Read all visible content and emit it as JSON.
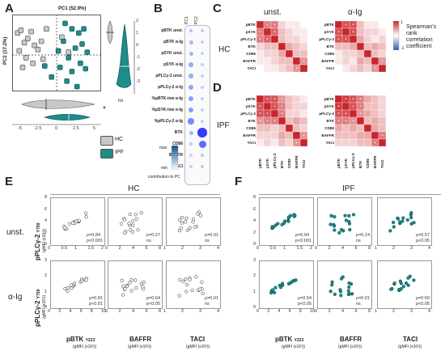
{
  "panel_letters": {
    "a": "A",
    "b": "B",
    "c": "C",
    "d": "D",
    "e": "E",
    "f": "F"
  },
  "panelA": {
    "pc1_label": "PC1 (52.9%)",
    "pc2_label": "PC2 (17.2%)",
    "x_ticks": [
      "-5",
      "-2.5",
      "0",
      "2.5",
      "5"
    ],
    "y_ticks": [
      "2",
      "1",
      "0",
      "-1",
      "-2",
      "-3"
    ],
    "sig_star": "*",
    "ns": "ns",
    "legend": [
      {
        "name": "HC",
        "color": "#c8c8c8"
      },
      {
        "name": "IPF",
        "color": "#1e8c88"
      }
    ],
    "hc_points": [
      [
        -4.6,
        1.6
      ],
      [
        -4.2,
        1.8
      ],
      [
        -3.8,
        0.9
      ],
      [
        -3.4,
        1.2
      ],
      [
        -3.0,
        1.7
      ],
      [
        -2.6,
        0.7
      ],
      [
        -2.2,
        0.4
      ],
      [
        -1.8,
        1.0
      ],
      [
        -4.4,
        0.3
      ],
      [
        -3.6,
        -0.2
      ],
      [
        -2.8,
        -0.6
      ],
      [
        -1.2,
        1.9
      ],
      [
        0.6,
        1.3
      ],
      [
        -4.0,
        -0.9
      ],
      [
        -1.6,
        -0.3
      ],
      [
        1.4,
        0.2
      ]
    ],
    "ipf_points": [
      [
        1.0,
        2.3
      ],
      [
        1.8,
        1.9
      ],
      [
        2.6,
        1.6
      ],
      [
        3.2,
        1.9
      ],
      [
        0.8,
        1.0
      ],
      [
        2.2,
        0.5
      ],
      [
        3.0,
        0.8
      ],
      [
        1.4,
        -0.2
      ],
      [
        2.8,
        -0.6
      ],
      [
        0.4,
        -0.9
      ],
      [
        1.8,
        -1.2
      ],
      [
        3.4,
        -1.0
      ],
      [
        -0.6,
        -1.6
      ],
      [
        1.2,
        -1.9
      ],
      [
        2.4,
        -2.3
      ],
      [
        -1.4,
        -0.8
      ],
      [
        3.6,
        0.2
      ],
      [
        0.2,
        0.3
      ]
    ]
  },
  "panelB": {
    "col_headers": [
      "PC1",
      "PC2"
    ],
    "rows": [
      "pBTK unst.",
      "pBTK α-Ig",
      "pSYK unst.",
      "pSYK α-Ig",
      "pPLCγ-2 unst.",
      "pPLCγ-2 α-Ig",
      "%pBTK-low α-Ig",
      "%pSYK-low α-Ig",
      "%pPLCγ-2 α-Ig",
      "BTK",
      "CD86",
      "BAFFR",
      "TACI"
    ],
    "pc1": [
      0.15,
      0.2,
      0.2,
      0.25,
      0.25,
      0.3,
      0.35,
      0.35,
      0.45,
      0.2,
      0.1,
      0.05,
      0.05
    ],
    "pc2": [
      0.05,
      0.05,
      0.05,
      0.05,
      0.05,
      0.05,
      0.05,
      0.05,
      0.05,
      0.85,
      0.6,
      0.1,
      0.1
    ],
    "scale_max": "max",
    "scale_min": "min",
    "scale_caption": "contribution to PC"
  },
  "panelCD": {
    "col_unst": "unst.",
    "col_aig": "α-Ig",
    "row_hc": "HC",
    "row_ipf": "IPF",
    "labels": [
      "pBTK",
      "pSYK",
      "pPLCγ-2",
      "BTK",
      "CD86",
      "BAFFR",
      "TACI"
    ],
    "colorbar_max": "1",
    "colorbar_min": "-1",
    "colorbar_caption": "Spearman's rank correlation coefficient",
    "hc_unst": [
      [
        1,
        0.6,
        0.6,
        0.2,
        0.1,
        0.1,
        0.0
      ],
      [
        0.6,
        1,
        0.7,
        0.3,
        0.2,
        0.1,
        0.1
      ],
      [
        0.6,
        0.7,
        1,
        0.3,
        0.2,
        0.2,
        0.1
      ],
      [
        0.2,
        0.3,
        0.3,
        1,
        0.4,
        0.3,
        0.2
      ],
      [
        0.1,
        0.2,
        0.2,
        0.4,
        1,
        0.3,
        0.3
      ],
      [
        0.1,
        0.1,
        0.2,
        0.3,
        0.3,
        1,
        0.5
      ],
      [
        0.0,
        0.1,
        0.1,
        0.2,
        0.3,
        0.5,
        1
      ]
    ],
    "hc_aig": [
      [
        1,
        0.8,
        0.8,
        0.3,
        0.1,
        0.1,
        0.0
      ],
      [
        0.8,
        1,
        0.8,
        0.3,
        0.2,
        0.2,
        0.1
      ],
      [
        0.8,
        0.8,
        1,
        0.4,
        0.2,
        0.1,
        0.2
      ],
      [
        0.3,
        0.3,
        0.4,
        1,
        0.3,
        0.4,
        0.3
      ],
      [
        0.1,
        0.2,
        0.2,
        0.3,
        1,
        0.3,
        0.2
      ],
      [
        0.1,
        0.2,
        0.1,
        0.4,
        0.3,
        1,
        0.5
      ],
      [
        0.0,
        0.1,
        0.2,
        0.3,
        0.2,
        0.5,
        1
      ]
    ],
    "ipf_unst": [
      [
        1,
        0.8,
        0.8,
        0.5,
        0.3,
        0.2,
        0.1
      ],
      [
        0.8,
        1,
        0.8,
        0.6,
        0.3,
        0.2,
        0.2
      ],
      [
        0.8,
        0.8,
        1,
        0.6,
        0.2,
        0.2,
        0.1
      ],
      [
        0.5,
        0.6,
        0.6,
        1,
        0.3,
        0.4,
        0.3
      ],
      [
        0.3,
        0.3,
        0.2,
        0.3,
        1,
        0.3,
        0.2
      ],
      [
        0.2,
        0.2,
        0.2,
        0.4,
        0.3,
        1,
        0.5
      ],
      [
        0.1,
        0.2,
        0.1,
        0.3,
        0.2,
        0.5,
        1
      ]
    ],
    "ipf_aig": [
      [
        1,
        0.9,
        0.8,
        0.6,
        0.4,
        0.3,
        0.2
      ],
      [
        0.9,
        1,
        0.8,
        0.6,
        0.3,
        0.3,
        0.2
      ],
      [
        0.8,
        0.8,
        1,
        0.5,
        0.4,
        0.3,
        0.2
      ],
      [
        0.6,
        0.6,
        0.5,
        1,
        0.3,
        0.4,
        0.3
      ],
      [
        0.4,
        0.3,
        0.4,
        0.3,
        1,
        0.4,
        0.3
      ],
      [
        0.3,
        0.3,
        0.3,
        0.4,
        0.4,
        1,
        0.6
      ],
      [
        0.2,
        0.2,
        0.2,
        0.3,
        0.3,
        0.6,
        1
      ]
    ]
  },
  "panelEF": {
    "hc_title": "HC",
    "ipf_title": "IPF",
    "row_unst": "unst.",
    "row_aig": "α-Ig",
    "y_label": "pPLCγ-2",
    "y_label_sub": "Y759",
    "y_units": "(gMFI (x10³))",
    "x_labels": [
      "pBTK",
      "BAFFR",
      "TACI"
    ],
    "x_label_sub": "Y223",
    "x_units": "(gMFI (x10³))",
    "hc_unst_stats": [
      [
        "ρ=0.84",
        "p<0.001"
      ],
      [
        "ρ=0.27",
        "ns"
      ],
      [
        "ρ=0.01",
        "ns"
      ]
    ],
    "hc_aig_stats": [
      [
        "ρ=0.81",
        "p<0.01"
      ],
      [
        "ρ=0.64",
        "p<0.05"
      ],
      [
        "ρ=0.01",
        "ns"
      ]
    ],
    "ipf_unst_stats": [
      [
        "ρ=0.94",
        "p<0.001"
      ],
      [
        "ρ=0.14",
        "ns"
      ],
      [
        "ρ=0.57",
        "p<0.05"
      ]
    ],
    "ipf_aig_stats": [
      [
        "ρ=0.54",
        "p<0.05"
      ],
      [
        "ρ=0.01",
        "ns"
      ],
      [
        "ρ=0.60",
        "p<0.05"
      ]
    ],
    "hc_unst_x_ticks": [
      [
        "0",
        "0.5",
        "1",
        "1.5",
        "2"
      ],
      [
        "0",
        "2",
        "4",
        "6",
        "8"
      ],
      [
        "1",
        "2",
        "3",
        "4"
      ]
    ],
    "hc_aig_x_ticks": [
      [
        "0",
        "2",
        "4",
        "6",
        "8",
        "10"
      ],
      [
        "0",
        "2",
        "4",
        "6",
        "8"
      ],
      [
        "1",
        "2",
        "3",
        "4"
      ]
    ],
    "ipf_unst_x_ticks": [
      [
        "0",
        "0.5",
        "1",
        "1.5",
        "2"
      ],
      [
        "0",
        "2",
        "4",
        "6",
        "8"
      ],
      [
        "1",
        "2",
        "3",
        "4"
      ]
    ],
    "ipf_aig_x_ticks": [
      [
        "0",
        "2",
        "4",
        "6",
        "8",
        "10"
      ],
      [
        "0",
        "2",
        "4",
        "6",
        "8"
      ],
      [
        "1",
        "2",
        "3",
        "4"
      ]
    ],
    "y_ticks_unst": [
      "8",
      "6",
      "4",
      "2",
      "0"
    ],
    "y_ticks_aig": [
      "3",
      "2",
      "1",
      "0"
    ],
    "hc_color": "#999999",
    "ipf_color": "#1e8c88"
  }
}
